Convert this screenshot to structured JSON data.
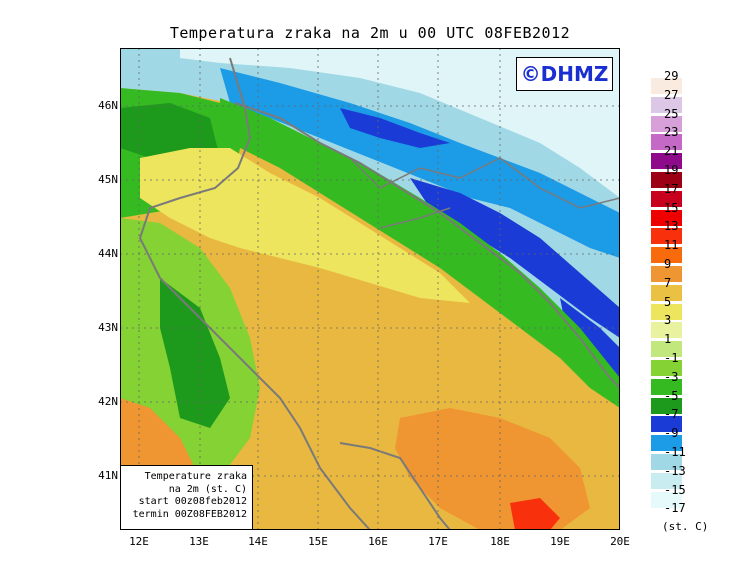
{
  "title": "Temperatura zraka na 2m u 00 UTC 08FEB2012",
  "brand": "©DHMZ",
  "info_box": {
    "line1": "Temperature zraka",
    "line2": "na 2m (st. C)",
    "line3": "start 00z08feb2012",
    "line4": "termin 00Z08FEB2012"
  },
  "lat_labels": [
    "46N",
    "45N",
    "44N",
    "43N",
    "42N",
    "41N"
  ],
  "lon_labels": [
    "12E",
    "13E",
    "14E",
    "15E",
    "16E",
    "17E",
    "18E",
    "19E",
    "20E"
  ],
  "legend": {
    "labels": [
      "29",
      "27",
      "25",
      "23",
      "21",
      "19",
      "17",
      "15",
      "13",
      "11",
      "9",
      "7",
      "5",
      "3",
      "1",
      "-1",
      "-3",
      "-5",
      "-7",
      "-9",
      "-11",
      "-13",
      "-15",
      "-17"
    ],
    "colors": [
      "#f9ebdf",
      "#dcc7e6",
      "#d7a0d8",
      "#c46ac6",
      "#8e0a8a",
      "#9c0015",
      "#c9001d",
      "#ee0000",
      "#f8300b",
      "#f76b0d",
      "#ef9632",
      "#ebc143",
      "#ede55d",
      "#e9f29e",
      "#c2e77d",
      "#84d233",
      "#35ba22",
      "#1d9a1b",
      "#1a3bd6",
      "#1c9be6",
      "#a1d8e6",
      "#c9ecf1",
      "#e6fafc"
    ],
    "unit": "(st. C)"
  }
}
